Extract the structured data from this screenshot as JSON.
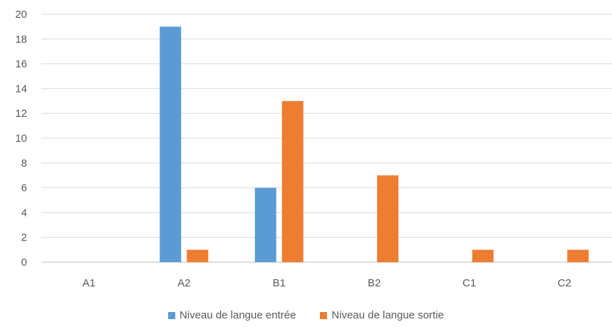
{
  "chart_data": {
    "type": "bar",
    "categories": [
      "A1",
      "A2",
      "B1",
      "B2",
      "C1",
      "C2"
    ],
    "series": [
      {
        "name": "Niveau de langue entrée",
        "values": [
          0,
          19,
          6,
          0,
          0,
          0
        ],
        "color": "#5b9bd5"
      },
      {
        "name": "Niveau de langue sortie",
        "values": [
          0,
          1,
          13,
          7,
          1,
          1
        ],
        "color": "#ed7d31"
      }
    ],
    "ylim": [
      0,
      20
    ],
    "yticks": [
      0,
      2,
      4,
      6,
      8,
      10,
      12,
      14,
      16,
      18,
      20
    ],
    "grid": true,
    "legend_position": "bottom",
    "gridline_color": "#d9d9d9",
    "axis_line_color": "#bfbfbf"
  }
}
